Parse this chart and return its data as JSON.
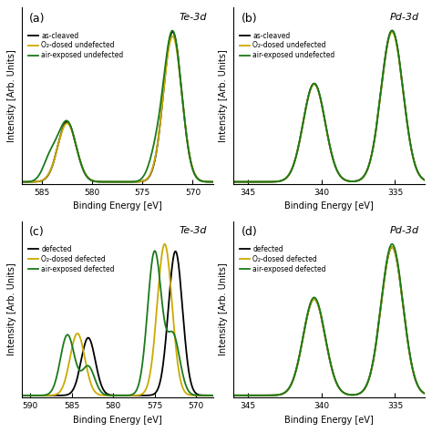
{
  "panels": [
    {
      "label": "(a)",
      "title": "Te-3d",
      "xlabel": "Binding Energy [eV]",
      "ylabel": "Intensity [Arb. Units]",
      "xlim": [
        587,
        568
      ],
      "xticks": [
        585,
        580,
        575,
        570
      ],
      "legend": [
        "as-cleaved",
        "O₂-dosed undefected",
        "air-exposed undefected"
      ],
      "colors": [
        "#000000",
        "#ccaa00",
        "#1a7a1a"
      ]
    },
    {
      "label": "(b)",
      "title": "Pd-3d",
      "xlabel": "Binding Energy [eV]",
      "ylabel": "Intensity [Arb. Units]",
      "xlim": [
        346,
        333
      ],
      "xticks": [
        345,
        340,
        335
      ],
      "legend": [
        "as-cleaved",
        "O₂-dosed undefected",
        "air-exposed undefected"
      ],
      "colors": [
        "#000000",
        "#ccaa00",
        "#1a7a1a"
      ]
    },
    {
      "label": "(c)",
      "title": "Te-3d",
      "xlabel": "Binding Energy [eV]",
      "ylabel": "Intensity [Arb. Units]",
      "xlim": [
        591,
        568
      ],
      "xticks": [
        590,
        585,
        580,
        575,
        570
      ],
      "legend": [
        "defected",
        "O₂-dosed defected",
        "air-exposed defected"
      ],
      "colors": [
        "#000000",
        "#ccaa00",
        "#1a7a1a"
      ]
    },
    {
      "label": "(d)",
      "title": "Pd-3d",
      "xlabel": "Binding Energy [eV]",
      "ylabel": "Intensity [Arb. Units]",
      "xlim": [
        346,
        333
      ],
      "xticks": [
        345,
        340,
        335
      ],
      "legend": [
        "defected",
        "O₂-dosed defected",
        "air-exposed defected"
      ],
      "colors": [
        "#000000",
        "#ccaa00",
        "#1a7a1a"
      ]
    }
  ]
}
